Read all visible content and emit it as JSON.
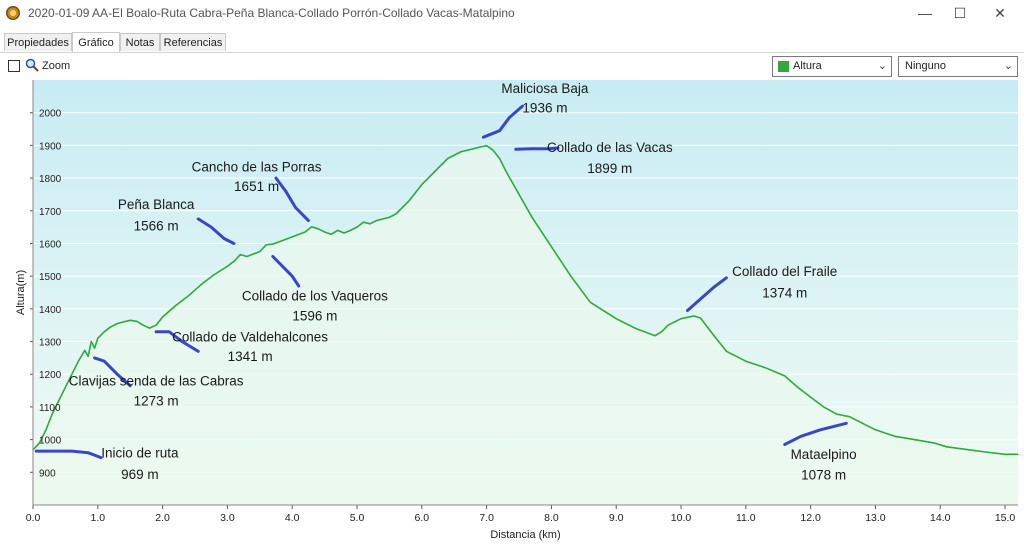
{
  "window": {
    "title": "2020-01-09 AA-El Boalo-Ruta Cabra-Peña Blanca-Collado Porrón-Collado Vacas-Matalpino",
    "minimize_glyph": "—",
    "maximize_glyph": "☐",
    "close_glyph": "✕"
  },
  "tabs": [
    {
      "label": "Propiedades"
    },
    {
      "label": "Gráfico"
    },
    {
      "label": "Notas"
    },
    {
      "label": "Referencias"
    }
  ],
  "toolbar": {
    "zoom_label": "Zoom",
    "zoom_checked": false,
    "series_select": "Altura",
    "series_color": "#2eaa3c",
    "second_select": "Ninguno"
  },
  "chart_data": {
    "type": "area",
    "xlabel": "Distancia  (km)",
    "ylabel": "Altura(m)",
    "xlim": [
      0,
      15.2
    ],
    "ylim": [
      800,
      2100
    ],
    "xticks": [
      0.0,
      1.0,
      2.0,
      3.0,
      4.0,
      5.0,
      6.0,
      7.0,
      8.0,
      9.0,
      10.0,
      11.0,
      12.0,
      13.0,
      14.0,
      15.0
    ],
    "xtick_labels": [
      "0.0",
      "1.0",
      "2.0",
      "3.0",
      "4.0",
      "5.0",
      "6.0",
      "7.0",
      "8.0",
      "9.0",
      "10.0",
      "11.0",
      "12.0",
      "13.0",
      "14.0",
      "15.0"
    ],
    "yticks": [
      900,
      1000,
      1100,
      1200,
      1300,
      1400,
      1500,
      1600,
      1700,
      1800,
      1900,
      2000
    ],
    "ytick_labels": [
      "900",
      "1000",
      "1100",
      "1200",
      "1300",
      "1400",
      "1500",
      "1600",
      "1700",
      "1800",
      "1900",
      "2000"
    ],
    "line_color": "#2eaa3c",
    "fill_top_color": "#c8ecf4",
    "fill_bottom_color": "#f2fbf3",
    "x": [
      0.0,
      0.1,
      0.2,
      0.3,
      0.4,
      0.5,
      0.6,
      0.7,
      0.8,
      0.85,
      0.9,
      0.95,
      1.0,
      1.05,
      1.1,
      1.2,
      1.3,
      1.4,
      1.5,
      1.6,
      1.7,
      1.8,
      1.9,
      2.0,
      2.2,
      2.4,
      2.6,
      2.8,
      3.0,
      3.1,
      3.2,
      3.3,
      3.5,
      3.6,
      3.7,
      3.8,
      4.0,
      4.2,
      4.3,
      4.4,
      4.5,
      4.6,
      4.7,
      4.8,
      4.9,
      5.0,
      5.1,
      5.2,
      5.3,
      5.4,
      5.5,
      5.6,
      5.8,
      6.0,
      6.2,
      6.4,
      6.6,
      6.8,
      6.9,
      7.0,
      7.1,
      7.2,
      7.3,
      7.5,
      7.7,
      8.0,
      8.3,
      8.6,
      9.0,
      9.3,
      9.5,
      9.6,
      9.7,
      9.8,
      9.9,
      10.0,
      10.1,
      10.2,
      10.3,
      10.5,
      10.7,
      11.0,
      11.3,
      11.6,
      11.8,
      12.0,
      12.2,
      12.4,
      12.6,
      12.8,
      13.0,
      13.3,
      13.6,
      13.9,
      14.1,
      14.4,
      14.7,
      15.0,
      15.2
    ],
    "y": [
      969,
      990,
      1030,
      1080,
      1120,
      1160,
      1200,
      1240,
      1273,
      1255,
      1300,
      1280,
      1310,
      1320,
      1330,
      1345,
      1355,
      1360,
      1365,
      1362,
      1350,
      1341,
      1350,
      1375,
      1410,
      1440,
      1475,
      1505,
      1530,
      1545,
      1566,
      1560,
      1575,
      1596,
      1598,
      1605,
      1620,
      1635,
      1651,
      1645,
      1635,
      1628,
      1640,
      1632,
      1640,
      1650,
      1665,
      1660,
      1670,
      1675,
      1680,
      1690,
      1730,
      1780,
      1820,
      1860,
      1880,
      1890,
      1895,
      1899,
      1885,
      1860,
      1820,
      1750,
      1680,
      1590,
      1500,
      1420,
      1370,
      1340,
      1325,
      1318,
      1330,
      1350,
      1360,
      1370,
      1374,
      1378,
      1372,
      1320,
      1270,
      1240,
      1220,
      1195,
      1160,
      1130,
      1100,
      1078,
      1070,
      1050,
      1030,
      1010,
      1000,
      990,
      978,
      970,
      962,
      955,
      955
    ],
    "peak_line": [
      [
        6.95,
        1905
      ],
      [
        7.05,
        1936
      ]
    ],
    "annotations": [
      {
        "name": "Maliciosa Baja",
        "value": "1936 m",
        "lx": 7.9,
        "ly": 2060,
        "vy": 2000,
        "seg": [
          [
            6.95,
            1925
          ],
          [
            7.2,
            1945
          ],
          [
            7.35,
            1985
          ],
          [
            7.55,
            2020
          ]
        ]
      },
      {
        "name": "Collado de las Vacas",
        "value": "1899 m",
        "lx": 8.9,
        "ly": 1880,
        "vy": 1815,
        "seg": [
          [
            7.45,
            1888
          ],
          [
            7.7,
            1890
          ],
          [
            7.95,
            1890
          ],
          [
            8.1,
            1892
          ]
        ]
      },
      {
        "name": "Cancho de las Porras",
        "value": "1651 m",
        "lx": 3.45,
        "ly": 1820,
        "vy": 1760,
        "seg": [
          [
            3.75,
            1800
          ],
          [
            3.9,
            1760
          ],
          [
            4.05,
            1710
          ],
          [
            4.25,
            1670
          ]
        ]
      },
      {
        "name": "Peña Blanca",
        "value": "1566 m",
        "lx": 1.9,
        "ly": 1705,
        "vy": 1640,
        "seg": [
          [
            2.55,
            1675
          ],
          [
            2.75,
            1650
          ],
          [
            2.95,
            1615
          ],
          [
            3.1,
            1600
          ]
        ]
      },
      {
        "name": "Collado de los Vaqueros",
        "value": "1596 m",
        "lx": 4.35,
        "ly": 1425,
        "vy": 1365,
        "seg": [
          [
            3.7,
            1560
          ],
          [
            3.85,
            1530
          ],
          [
            4.0,
            1500
          ],
          [
            4.1,
            1470
          ]
        ]
      },
      {
        "name": "Collado de Valdehalcones",
        "value": "1341 m",
        "lx": 3.35,
        "ly": 1300,
        "vy": 1240,
        "seg": [
          [
            1.9,
            1330
          ],
          [
            2.1,
            1330
          ],
          [
            2.3,
            1300
          ],
          [
            2.55,
            1270
          ]
        ]
      },
      {
        "name": "Clavijas senda de las Cabras",
        "value": "1273 m",
        "lx": 1.9,
        "ly": 1165,
        "vy": 1105,
        "seg": [
          [
            0.95,
            1250
          ],
          [
            1.1,
            1240
          ],
          [
            1.3,
            1200
          ],
          [
            1.5,
            1165
          ]
        ]
      },
      {
        "name": "Inicio de ruta",
        "value": "969 m",
        "lx": 1.65,
        "ly": 945,
        "vy": 880,
        "seg": [
          [
            0.05,
            965
          ],
          [
            0.6,
            965
          ],
          [
            0.85,
            960
          ],
          [
            1.05,
            945
          ]
        ]
      },
      {
        "name": "Collado del Fraile",
        "value": "1374 m",
        "lx": 11.6,
        "ly": 1500,
        "vy": 1435,
        "seg": [
          [
            10.1,
            1395
          ],
          [
            10.3,
            1430
          ],
          [
            10.5,
            1465
          ],
          [
            10.7,
            1495
          ]
        ]
      },
      {
        "name": "Mataelpino",
        "value": "1078 m",
        "lx": 12.2,
        "ly": 940,
        "vy": 878,
        "seg": [
          [
            11.6,
            985
          ],
          [
            11.85,
            1010
          ],
          [
            12.15,
            1030
          ],
          [
            12.55,
            1050
          ]
        ]
      }
    ]
  }
}
